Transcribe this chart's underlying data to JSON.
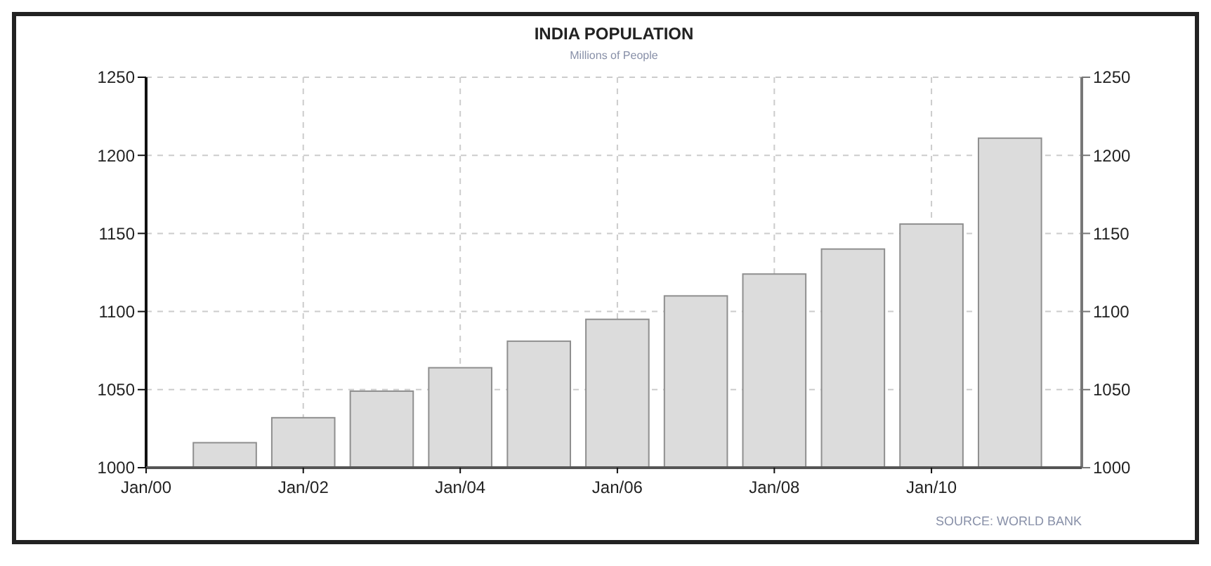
{
  "chart_data": {
    "type": "bar",
    "title": "INDIA POPULATION",
    "subtitle": "Millions of People",
    "x": [
      "2001-01",
      "2002-01",
      "2003-01",
      "2004-01",
      "2005-01",
      "2006-01",
      "2007-01",
      "2008-01",
      "2009-01",
      "2010-01",
      "2011-01"
    ],
    "values": [
      1016,
      1032,
      1049,
      1064,
      1081,
      1095,
      1110,
      1124,
      1140,
      1156,
      1211
    ],
    "color": "#dcdcdc",
    "xlim": [
      "2000-01",
      "2011-12"
    ],
    "xticks": [
      {
        "value": "2000-01",
        "label": "Jan/00"
      },
      {
        "value": "2002-01",
        "label": "Jan/02"
      },
      {
        "value": "2004-01",
        "label": "Jan/04"
      },
      {
        "value": "2006-01",
        "label": "Jan/06"
      },
      {
        "value": "2008-01",
        "label": "Jan/08"
      },
      {
        "value": "2010-01",
        "label": "Jan/10"
      }
    ],
    "ylim": [
      1000,
      1250
    ],
    "yticks": [
      1000,
      1050,
      1100,
      1150,
      1200,
      1250
    ],
    "y2lim": [
      1000,
      1250
    ],
    "y2ticks": [
      1000,
      1050,
      1100,
      1150,
      1200,
      1250
    ],
    "grid": true,
    "annotations": [
      "SOURCE: WORLD BANK"
    ]
  }
}
